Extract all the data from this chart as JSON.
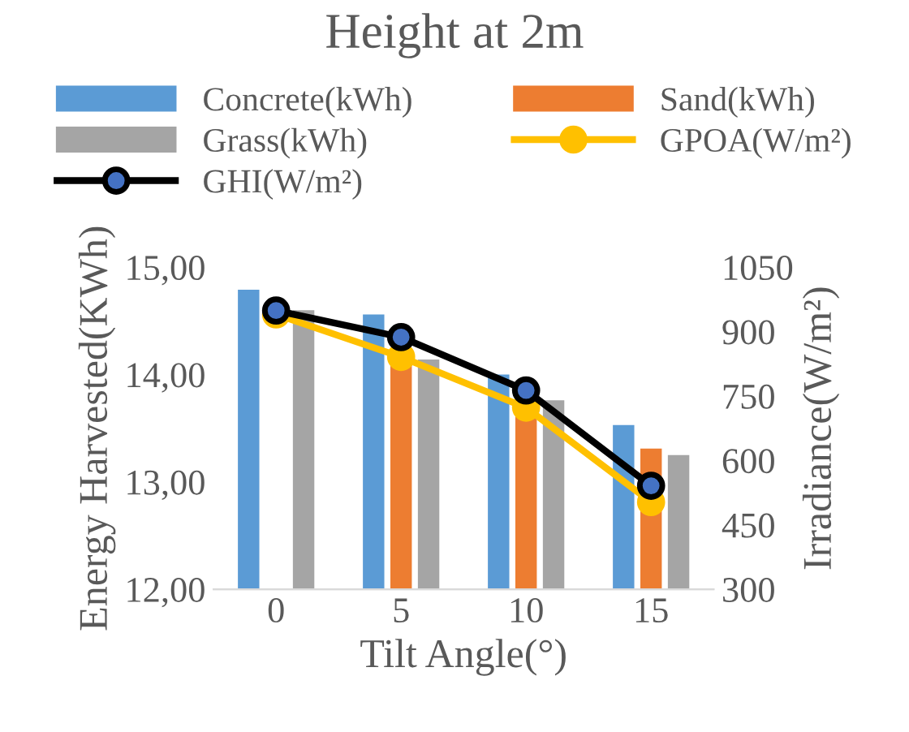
{
  "chart_data": {
    "type": "bar",
    "title": "Height at 2m",
    "xlabel": "Tilt Angle(°)",
    "ylabel": "Energy Harvested(KWh)",
    "y2label": "Irradiance(W/m²)",
    "categories": [
      "0",
      "5",
      "10",
      "15"
    ],
    "series": [
      {
        "name": "Concrete(kWh)",
        "color": "#5b9bd5",
        "values": [
          14.79,
          14.56,
          14.0,
          13.53
        ]
      },
      {
        "name": "Sand(kWh)",
        "color": "#ed7d31",
        "values": [
          null,
          14.23,
          13.74,
          13.31
        ]
      },
      {
        "name": "Grass(kWh)",
        "color": "#a5a5a5",
        "values": [
          14.6,
          14.14,
          13.76,
          13.25
        ]
      },
      {
        "name": "GPOA(W/m²)",
        "type": "line",
        "axis": "y2",
        "color": "#ffc000",
        "marker": "circle",
        "values": [
          940,
          841,
          723,
          503
        ]
      },
      {
        "name": "GHI(W/m²)",
        "type": "line",
        "axis": "y2",
        "color": "#000000",
        "marker": "circle",
        "values": [
          949,
          887,
          763,
          541
        ]
      }
    ],
    "ylim": [
      12,
      15
    ],
    "yticks": [
      {
        "value": 12,
        "label": "12,00"
      },
      {
        "value": 13,
        "label": "13,00"
      },
      {
        "value": 14,
        "label": "14,00"
      },
      {
        "value": 15,
        "label": "15,00"
      }
    ],
    "y2lim": [
      300,
      1050
    ],
    "y2ticks": [
      300,
      450,
      600,
      750,
      900,
      1050
    ],
    "legend": "top",
    "grid": false
  }
}
